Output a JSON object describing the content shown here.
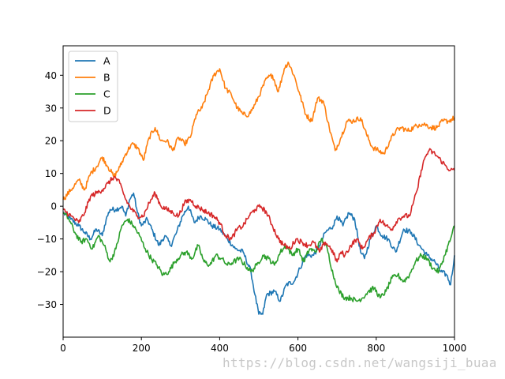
{
  "watermark": "https://blog.csdn.net/wangsiji_buaa",
  "chart_data": {
    "type": "line",
    "title": "",
    "xlabel": "",
    "ylabel": "",
    "xlim": [
      0,
      1000
    ],
    "ylim": [
      -40,
      49
    ],
    "xticks": [
      0,
      200,
      400,
      600,
      800,
      1000
    ],
    "yticks": [
      -30,
      -20,
      -10,
      0,
      10,
      20,
      30,
      40
    ],
    "grid": false,
    "legend_position": "top-left",
    "series": [
      {
        "name": "A",
        "color": "#1f77b4",
        "points": [
          [
            0,
            -2
          ],
          [
            20,
            -4
          ],
          [
            40,
            -6
          ],
          [
            55,
            -8
          ],
          [
            70,
            -10
          ],
          [
            85,
            -7
          ],
          [
            100,
            -9
          ],
          [
            110,
            -4
          ],
          [
            120,
            -1
          ],
          [
            135,
            -1
          ],
          [
            150,
            0
          ],
          [
            160,
            -3
          ],
          [
            170,
            2
          ],
          [
            180,
            4
          ],
          [
            190,
            -2
          ],
          [
            200,
            -6
          ],
          [
            215,
            -4
          ],
          [
            230,
            -8
          ],
          [
            245,
            -12
          ],
          [
            260,
            -9
          ],
          [
            275,
            -12
          ],
          [
            290,
            -8
          ],
          [
            305,
            -3
          ],
          [
            320,
            0
          ],
          [
            335,
            -5
          ],
          [
            350,
            -3
          ],
          [
            365,
            -4
          ],
          [
            380,
            -6
          ],
          [
            400,
            -7
          ],
          [
            420,
            -10
          ],
          [
            440,
            -13
          ],
          [
            460,
            -14
          ],
          [
            480,
            -20
          ],
          [
            490,
            -27
          ],
          [
            500,
            -33
          ],
          [
            510,
            -33
          ],
          [
            520,
            -27
          ],
          [
            540,
            -26
          ],
          [
            555,
            -29
          ],
          [
            570,
            -24
          ],
          [
            590,
            -23
          ],
          [
            605,
            -19
          ],
          [
            620,
            -15
          ],
          [
            640,
            -15
          ],
          [
            655,
            -12
          ],
          [
            670,
            -8
          ],
          [
            690,
            -6
          ],
          [
            700,
            -3
          ],
          [
            715,
            -6
          ],
          [
            730,
            -2
          ],
          [
            745,
            -4
          ],
          [
            760,
            -14
          ],
          [
            770,
            -16
          ],
          [
            785,
            -10
          ],
          [
            800,
            -6
          ],
          [
            815,
            -9
          ],
          [
            830,
            -10
          ],
          [
            850,
            -14
          ],
          [
            870,
            -7
          ],
          [
            890,
            -8
          ],
          [
            910,
            -12
          ],
          [
            930,
            -15
          ],
          [
            950,
            -17
          ],
          [
            965,
            -20
          ],
          [
            980,
            -21
          ],
          [
            990,
            -24
          ],
          [
            1000,
            -15
          ]
        ]
      },
      {
        "name": "B",
        "color": "#ff7f0e",
        "points": [
          [
            0,
            2
          ],
          [
            20,
            5
          ],
          [
            40,
            8
          ],
          [
            55,
            5
          ],
          [
            70,
            10
          ],
          [
            85,
            12
          ],
          [
            100,
            15
          ],
          [
            115,
            12
          ],
          [
            130,
            9
          ],
          [
            145,
            12
          ],
          [
            160,
            16
          ],
          [
            175,
            19
          ],
          [
            190,
            18
          ],
          [
            205,
            14
          ],
          [
            220,
            21
          ],
          [
            235,
            24
          ],
          [
            250,
            20
          ],
          [
            265,
            20
          ],
          [
            280,
            17
          ],
          [
            295,
            21
          ],
          [
            310,
            19
          ],
          [
            325,
            21
          ],
          [
            340,
            28
          ],
          [
            355,
            30
          ],
          [
            370,
            35
          ],
          [
            385,
            40
          ],
          [
            400,
            42
          ],
          [
            415,
            36
          ],
          [
            430,
            34
          ],
          [
            445,
            30
          ],
          [
            460,
            28
          ],
          [
            475,
            28
          ],
          [
            490,
            31
          ],
          [
            505,
            35
          ],
          [
            520,
            39
          ],
          [
            535,
            40
          ],
          [
            550,
            35
          ],
          [
            565,
            42
          ],
          [
            575,
            44
          ],
          [
            590,
            40
          ],
          [
            605,
            34
          ],
          [
            620,
            28
          ],
          [
            635,
            26
          ],
          [
            650,
            33
          ],
          [
            665,
            32
          ],
          [
            680,
            24
          ],
          [
            695,
            17
          ],
          [
            710,
            21
          ],
          [
            725,
            26
          ],
          [
            740,
            26
          ],
          [
            760,
            27
          ],
          [
            775,
            22
          ],
          [
            790,
            18
          ],
          [
            805,
            17
          ],
          [
            820,
            16
          ],
          [
            835,
            20
          ],
          [
            850,
            23
          ],
          [
            865,
            24
          ],
          [
            880,
            23
          ],
          [
            895,
            24
          ],
          [
            910,
            25
          ],
          [
            925,
            25
          ],
          [
            940,
            24
          ],
          [
            955,
            24
          ],
          [
            970,
            26
          ],
          [
            985,
            26
          ],
          [
            1000,
            27
          ]
        ]
      },
      {
        "name": "C",
        "color": "#2ca02c",
        "points": [
          [
            0,
            -2
          ],
          [
            15,
            -4
          ],
          [
            30,
            -8
          ],
          [
            45,
            -11
          ],
          [
            60,
            -10
          ],
          [
            75,
            -13
          ],
          [
            90,
            -9
          ],
          [
            105,
            -12
          ],
          [
            120,
            -17
          ],
          [
            135,
            -13
          ],
          [
            150,
            -6
          ],
          [
            165,
            -4
          ],
          [
            180,
            -6
          ],
          [
            195,
            -9
          ],
          [
            210,
            -13
          ],
          [
            225,
            -16
          ],
          [
            240,
            -18
          ],
          [
            255,
            -21
          ],
          [
            270,
            -20
          ],
          [
            285,
            -17
          ],
          [
            300,
            -15
          ],
          [
            315,
            -14
          ],
          [
            330,
            -16
          ],
          [
            345,
            -12
          ],
          [
            360,
            -17
          ],
          [
            375,
            -18
          ],
          [
            390,
            -15
          ],
          [
            405,
            -16
          ],
          [
            420,
            -18
          ],
          [
            435,
            -17
          ],
          [
            450,
            -16
          ],
          [
            465,
            -18
          ],
          [
            480,
            -20
          ],
          [
            495,
            -18
          ],
          [
            510,
            -15
          ],
          [
            525,
            -16
          ],
          [
            540,
            -18
          ],
          [
            555,
            -14
          ],
          [
            570,
            -12
          ],
          [
            585,
            -15
          ],
          [
            600,
            -13
          ],
          [
            615,
            -17
          ],
          [
            630,
            -13
          ],
          [
            645,
            -14
          ],
          [
            660,
            -10
          ],
          [
            675,
            -13
          ],
          [
            690,
            -21
          ],
          [
            705,
            -26
          ],
          [
            720,
            -28
          ],
          [
            735,
            -28
          ],
          [
            750,
            -29
          ],
          [
            765,
            -28
          ],
          [
            780,
            -26
          ],
          [
            795,
            -25
          ],
          [
            810,
            -28
          ],
          [
            825,
            -26
          ],
          [
            840,
            -22
          ],
          [
            855,
            -21
          ],
          [
            870,
            -23
          ],
          [
            885,
            -21
          ],
          [
            900,
            -17
          ],
          [
            915,
            -15
          ],
          [
            930,
            -16
          ],
          [
            945,
            -19
          ],
          [
            960,
            -20
          ],
          [
            975,
            -15
          ],
          [
            990,
            -10
          ],
          [
            1000,
            -6
          ]
        ]
      },
      {
        "name": "D",
        "color": "#d62728",
        "points": [
          [
            0,
            -1
          ],
          [
            20,
            -3
          ],
          [
            40,
            -5
          ],
          [
            55,
            -2
          ],
          [
            70,
            3
          ],
          [
            85,
            4
          ],
          [
            100,
            5
          ],
          [
            115,
            7
          ],
          [
            130,
            9
          ],
          [
            145,
            7
          ],
          [
            160,
            2
          ],
          [
            175,
            -1
          ],
          [
            190,
            -3
          ],
          [
            205,
            -3
          ],
          [
            220,
            1
          ],
          [
            235,
            4
          ],
          [
            250,
            0
          ],
          [
            265,
            -1
          ],
          [
            280,
            -2
          ],
          [
            295,
            -3
          ],
          [
            310,
            1
          ],
          [
            325,
            2
          ],
          [
            340,
            0
          ],
          [
            355,
            -1
          ],
          [
            370,
            -2
          ],
          [
            385,
            -3
          ],
          [
            400,
            -5
          ],
          [
            415,
            -9
          ],
          [
            430,
            -10
          ],
          [
            445,
            -7
          ],
          [
            460,
            -6
          ],
          [
            475,
            -3
          ],
          [
            490,
            -1
          ],
          [
            505,
            0
          ],
          [
            520,
            -2
          ],
          [
            535,
            -6
          ],
          [
            550,
            -10
          ],
          [
            565,
            -12
          ],
          [
            580,
            -13
          ],
          [
            595,
            -10
          ],
          [
            610,
            -11
          ],
          [
            625,
            -12
          ],
          [
            640,
            -11
          ],
          [
            655,
            -14
          ],
          [
            670,
            -11
          ],
          [
            685,
            -13
          ],
          [
            700,
            -17
          ],
          [
            710,
            -14
          ],
          [
            720,
            -15
          ],
          [
            735,
            -12
          ],
          [
            750,
            -10
          ],
          [
            765,
            -13
          ],
          [
            780,
            -10
          ],
          [
            795,
            -8
          ],
          [
            810,
            -4
          ],
          [
            825,
            -6
          ],
          [
            840,
            -7
          ],
          [
            855,
            -4
          ],
          [
            870,
            -3
          ],
          [
            885,
            -3
          ],
          [
            895,
            1
          ],
          [
            905,
            5
          ],
          [
            915,
            11
          ],
          [
            925,
            15
          ],
          [
            935,
            17
          ],
          [
            950,
            16
          ],
          [
            965,
            14
          ],
          [
            980,
            12
          ],
          [
            990,
            11
          ],
          [
            1000,
            11
          ]
        ]
      }
    ]
  }
}
